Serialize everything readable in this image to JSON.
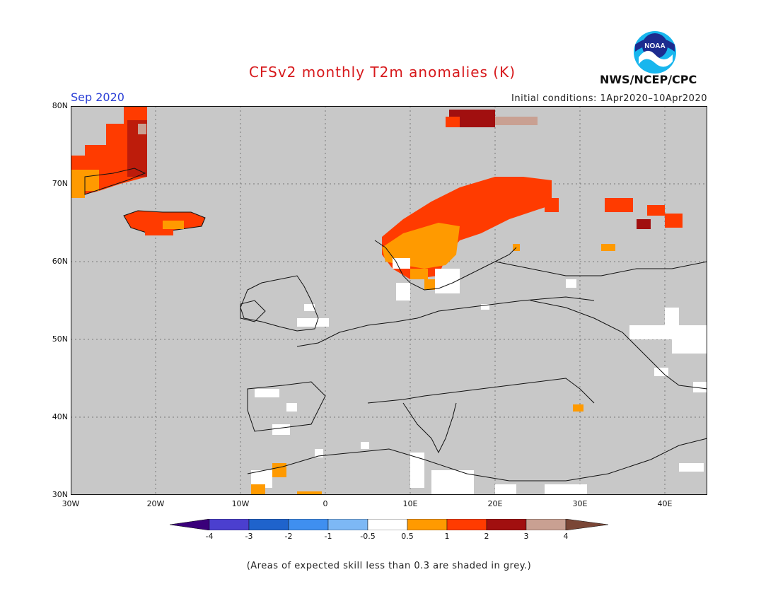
{
  "header": {
    "title": "CFSv2 monthly T2m anomalies (K)",
    "month": "Sep 2020",
    "initial_conditions": "Initial conditions: 1Apr2020–10Apr2020",
    "agency": "NWS/NCEP/CPC",
    "logo_text": "NOAA",
    "logo_icon": "noaa-logo-icon"
  },
  "map": {
    "region": "Europe",
    "lon_range": [
      -30,
      45
    ],
    "lat_range": [
      30,
      80
    ],
    "gridlines": "dotted",
    "background_color": "#c8c8c8",
    "lat_labels": [
      "80N",
      "70N",
      "60N",
      "50N",
      "40N",
      "30N"
    ],
    "lon_labels": [
      "30W",
      "20W",
      "10W",
      "0",
      "10E",
      "20E",
      "30E",
      "40E"
    ]
  },
  "colorbar": {
    "ticks": [
      "-4",
      "-3",
      "-2",
      "-1",
      "-0.5",
      "0.5",
      "1",
      "2",
      "3",
      "4"
    ],
    "colors": [
      "#3a007a",
      "#4b3fcf",
      "#1f63cc",
      "#3f8ff0",
      "#7db8f5",
      "#ffffff",
      "#ff9a00",
      "#ff3b00",
      "#a10f0f",
      "#c9a092",
      "#7a4636"
    ]
  },
  "footnote": "(Areas of expected skill less than 0.3 are shaded in grey.)"
}
